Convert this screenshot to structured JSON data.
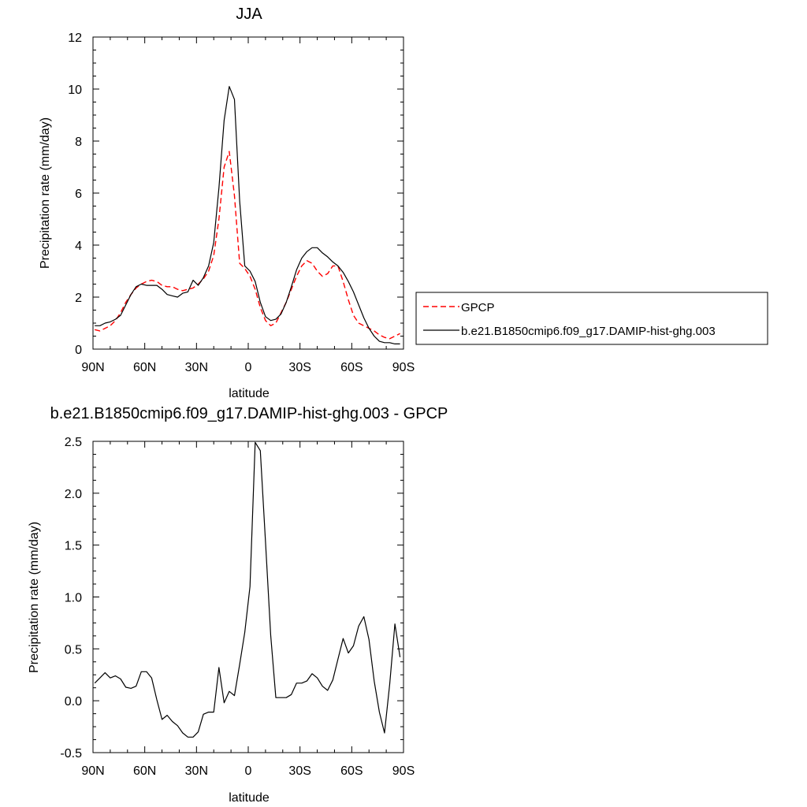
{
  "chart_data": [
    {
      "type": "line",
      "title": "JJA",
      "xlabel": "latitude",
      "ylabel": "Precipitation rate (mm/day)",
      "xlim": [
        90,
        -90
      ],
      "ylim": [
        0,
        12
      ],
      "x_ticks": [
        {
          "value": 90,
          "label": "90N"
        },
        {
          "value": 60,
          "label": "60N"
        },
        {
          "value": 30,
          "label": "30N"
        },
        {
          "value": 0,
          "label": "0"
        },
        {
          "value": -30,
          "label": "30S"
        },
        {
          "value": -60,
          "label": "60S"
        },
        {
          "value": -90,
          "label": "90S"
        }
      ],
      "y_ticks": [
        {
          "value": 0,
          "label": "0"
        },
        {
          "value": 2,
          "label": "2"
        },
        {
          "value": 4,
          "label": "4"
        },
        {
          "value": 6,
          "label": "6"
        },
        {
          "value": 8,
          "label": "8"
        },
        {
          "value": 10,
          "label": "10"
        },
        {
          "value": 12,
          "label": "12"
        }
      ],
      "legend_position": "right",
      "series": [
        {
          "name": "GPCP",
          "color": "#ff0000",
          "dash": "dashed",
          "x": [
            89,
            86,
            83,
            80,
            77,
            74,
            71,
            68,
            65,
            62,
            59,
            56,
            53,
            50,
            47,
            44,
            41,
            38,
            35,
            32,
            29,
            26,
            23,
            20,
            17,
            14,
            11,
            8,
            5,
            2,
            -1,
            -4,
            -7,
            -10,
            -13,
            -16,
            -19,
            -22,
            -25,
            -28,
            -31,
            -34,
            -37,
            -40,
            -43,
            -46,
            -49,
            -52,
            -55,
            -58,
            -61,
            -64,
            -67,
            -70,
            -73,
            -76,
            -79,
            -82,
            -85,
            -88
          ],
          "y": [
            0.75,
            0.7,
            0.8,
            0.9,
            1.1,
            1.4,
            1.8,
            2.1,
            2.35,
            2.5,
            2.6,
            2.65,
            2.6,
            2.45,
            2.4,
            2.4,
            2.3,
            2.25,
            2.3,
            2.35,
            2.5,
            2.7,
            3.0,
            3.6,
            5.0,
            7.0,
            7.6,
            5.9,
            3.3,
            3.1,
            2.8,
            2.3,
            1.6,
            1.1,
            0.9,
            1.0,
            1.4,
            1.8,
            2.3,
            2.8,
            3.2,
            3.4,
            3.3,
            3.0,
            2.8,
            2.9,
            3.2,
            3.2,
            2.6,
            1.9,
            1.3,
            1.0,
            0.9,
            0.8,
            0.7,
            0.55,
            0.45,
            0.4,
            0.5,
            0.6
          ]
        },
        {
          "name": "b.e21.B1850cmip6.f09_g17.DAMIP-hist-ghg.003",
          "color": "#000000",
          "dash": "solid",
          "x": [
            89,
            86,
            83,
            80,
            77,
            74,
            71,
            68,
            65,
            62,
            59,
            56,
            53,
            50,
            47,
            44,
            41,
            38,
            35,
            32,
            29,
            26,
            23,
            20,
            17,
            14,
            11,
            8,
            5,
            2,
            -1,
            -4,
            -7,
            -10,
            -13,
            -16,
            -19,
            -22,
            -25,
            -28,
            -31,
            -34,
            -37,
            -40,
            -43,
            -46,
            -49,
            -52,
            -55,
            -58,
            -61,
            -64,
            -67,
            -70,
            -73,
            -76,
            -79,
            -82,
            -85,
            -88
          ],
          "y": [
            0.9,
            0.9,
            1.0,
            1.05,
            1.15,
            1.3,
            1.7,
            2.1,
            2.4,
            2.5,
            2.45,
            2.45,
            2.45,
            2.3,
            2.1,
            2.05,
            2.0,
            2.15,
            2.2,
            2.65,
            2.45,
            2.75,
            3.2,
            4.1,
            6.2,
            8.8,
            10.1,
            9.6,
            5.7,
            3.2,
            3.0,
            2.6,
            1.8,
            1.25,
            1.1,
            1.15,
            1.35,
            1.8,
            2.4,
            3.05,
            3.5,
            3.75,
            3.9,
            3.9,
            3.7,
            3.55,
            3.35,
            3.2,
            2.95,
            2.6,
            2.2,
            1.7,
            1.2,
            0.8,
            0.5,
            0.3,
            0.25,
            0.25,
            0.2,
            0.2
          ]
        }
      ]
    },
    {
      "type": "line",
      "title": "b.e21.B1850cmip6.f09_g17.DAMIP-hist-ghg.003 - GPCP",
      "xlabel": "latitude",
      "ylabel": "Precipitation rate (mm/day)",
      "xlim": [
        90,
        -90
      ],
      "ylim": [
        -0.5,
        2.5
      ],
      "x_ticks": [
        {
          "value": 90,
          "label": "90N"
        },
        {
          "value": 60,
          "label": "60N"
        },
        {
          "value": 30,
          "label": "30N"
        },
        {
          "value": 0,
          "label": "0"
        },
        {
          "value": -30,
          "label": "30S"
        },
        {
          "value": -60,
          "label": "60S"
        },
        {
          "value": -90,
          "label": "90S"
        }
      ],
      "y_ticks": [
        {
          "value": -0.5,
          "label": "-0.5"
        },
        {
          "value": 0.0,
          "label": "0.0"
        },
        {
          "value": 0.5,
          "label": "0.5"
        },
        {
          "value": 1.0,
          "label": "1.0"
        },
        {
          "value": 1.5,
          "label": "1.5"
        },
        {
          "value": 2.0,
          "label": "2.0"
        },
        {
          "value": 2.5,
          "label": "2.5"
        }
      ],
      "series": [
        {
          "color": "#000000",
          "dash": "solid",
          "x": [
            89,
            86,
            83,
            80,
            77,
            74,
            71,
            68,
            65,
            62,
            59,
            56,
            53,
            50,
            47,
            44,
            41,
            38,
            35,
            32,
            29,
            26,
            23,
            20,
            17,
            14,
            11,
            8,
            5,
            2,
            -1,
            -4,
            -7,
            -10,
            -13,
            -16,
            -19,
            -22,
            -25,
            -28,
            -31,
            -34,
            -37,
            -40,
            -43,
            -46,
            -49,
            -52,
            -55,
            -58,
            -61,
            -64,
            -67,
            -70,
            -73,
            -76,
            -79,
            -82,
            -85,
            -88
          ],
          "y": [
            0.17,
            0.22,
            0.27,
            0.22,
            0.24,
            0.21,
            0.13,
            0.12,
            0.14,
            0.28,
            0.28,
            0.22,
            0.01,
            -0.18,
            -0.14,
            -0.2,
            -0.24,
            -0.31,
            -0.35,
            -0.35,
            -0.3,
            -0.13,
            -0.11,
            -0.11,
            0.32,
            -0.02,
            0.09,
            0.05,
            0.35,
            0.66,
            1.1,
            2.49,
            2.41,
            1.53,
            0.63,
            0.03,
            0.03,
            0.03,
            0.06,
            0.17,
            0.17,
            0.19,
            0.26,
            0.22,
            0.14,
            0.1,
            0.2,
            0.4,
            0.6,
            0.46,
            0.53,
            0.72,
            0.81,
            0.59,
            0.19,
            -0.11,
            -0.31,
            0.16,
            0.74,
            0.42
          ]
        }
      ]
    }
  ]
}
